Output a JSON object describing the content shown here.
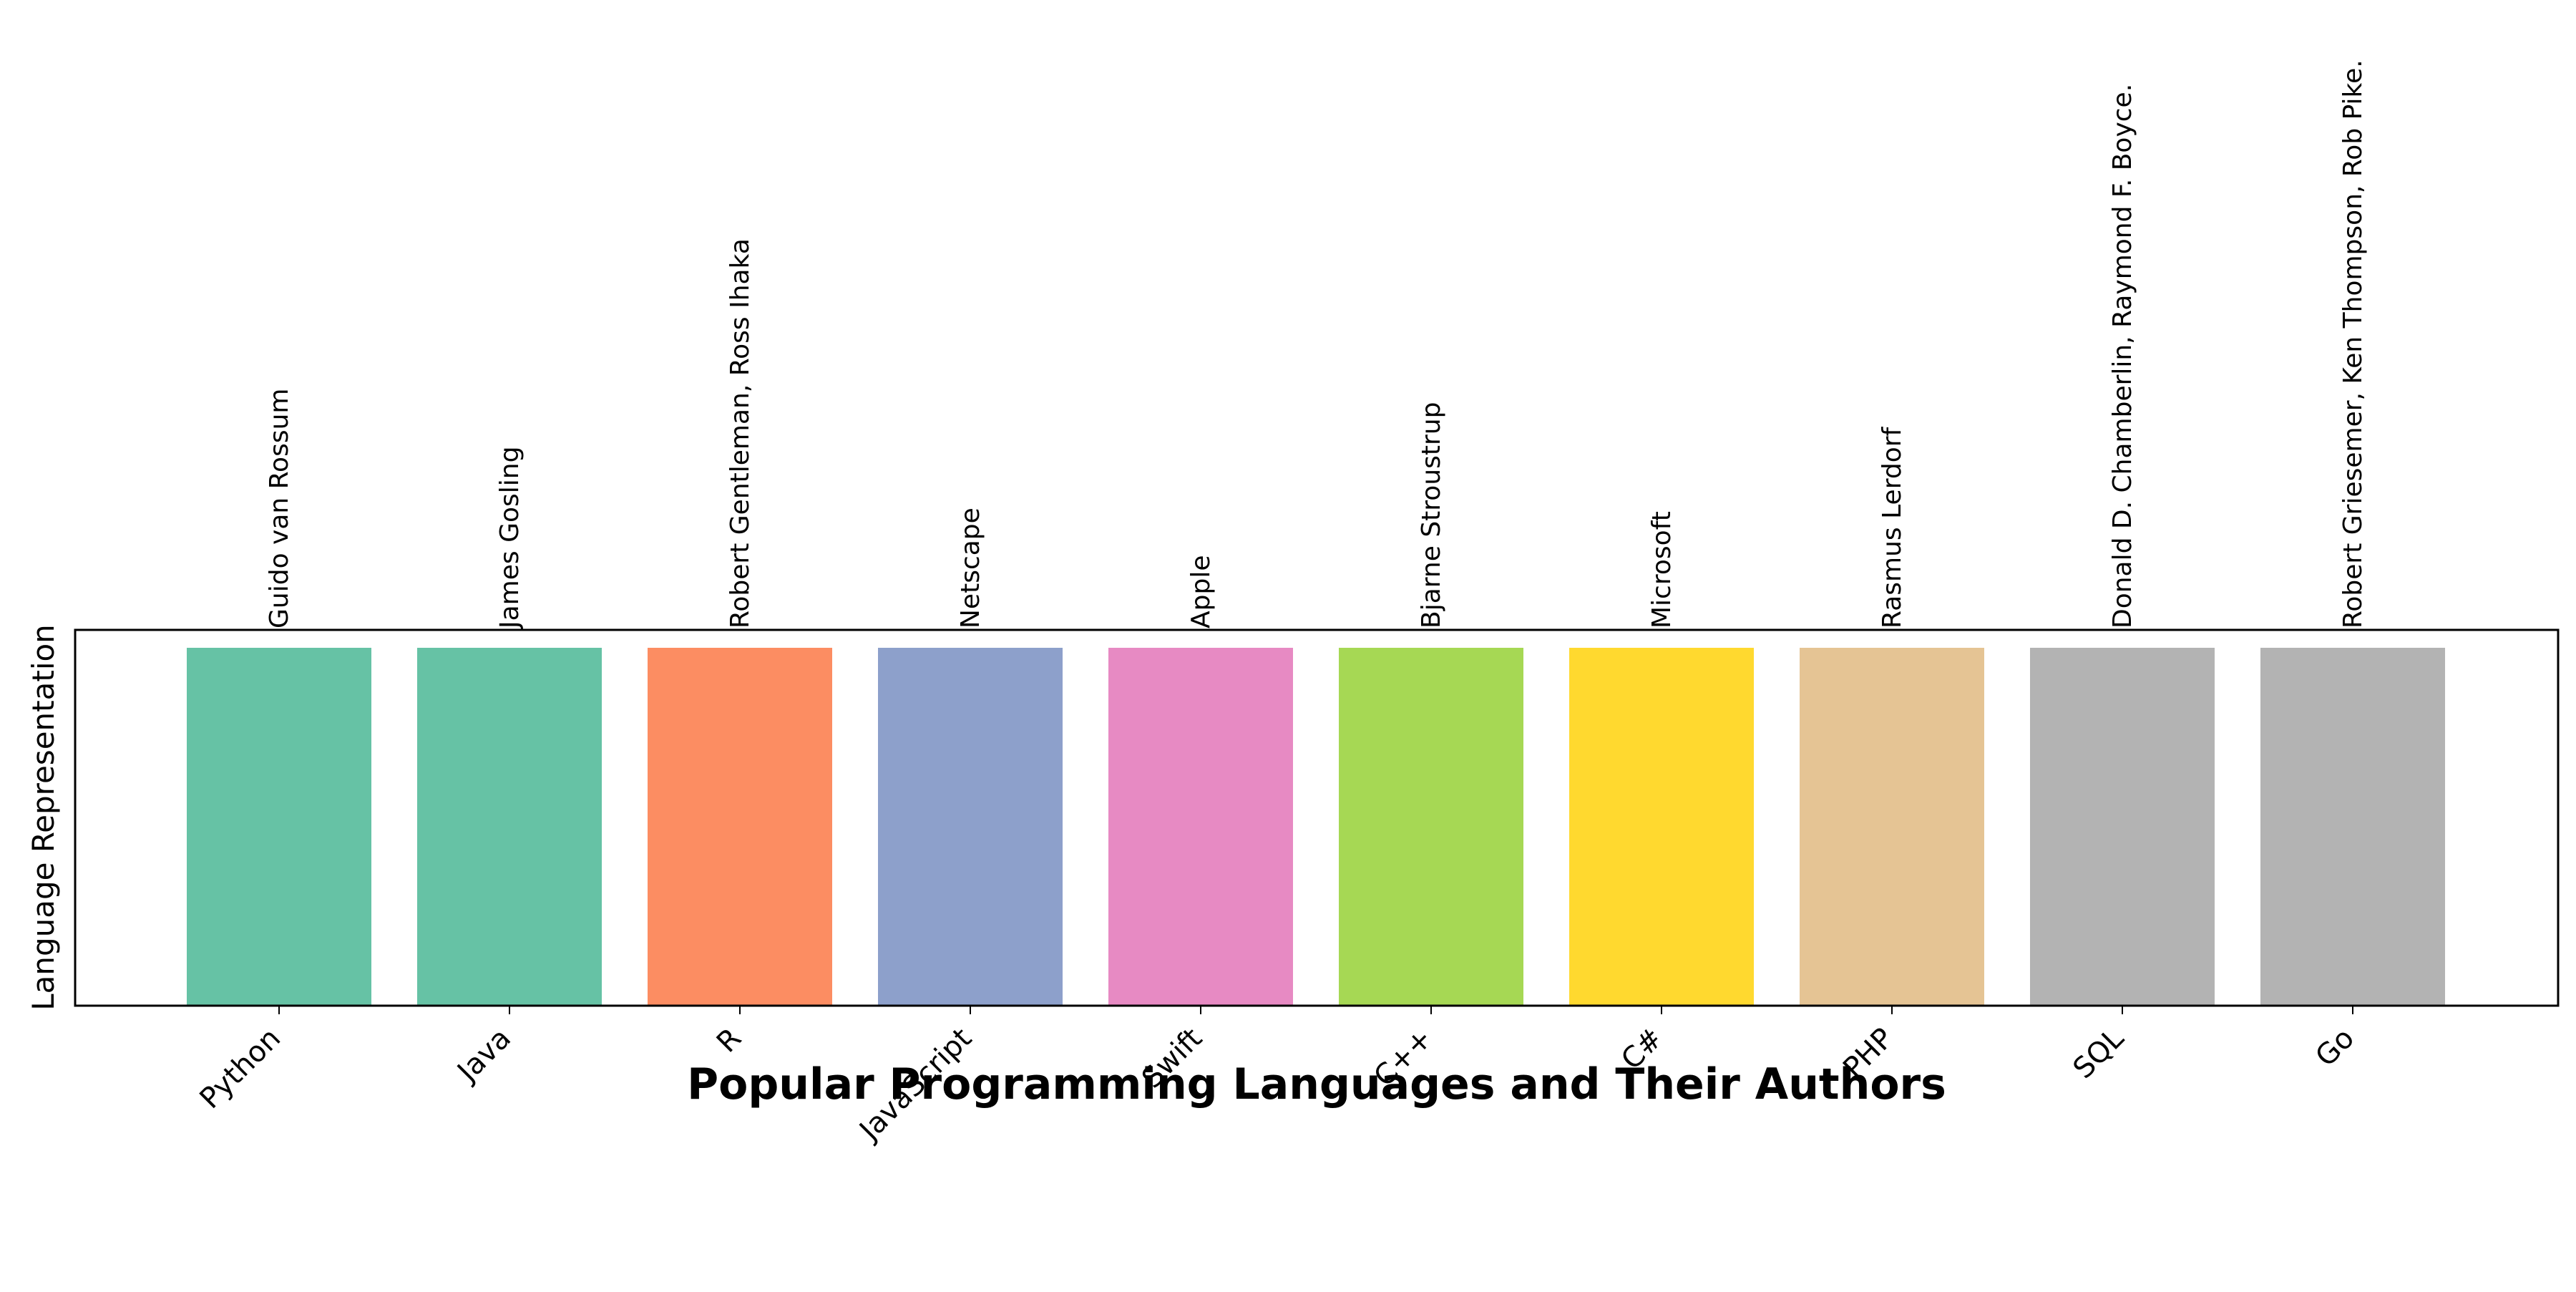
{
  "chart_data": {
    "type": "bar",
    "title": "Popular Programming Languages and Their Authors",
    "xlabel": "",
    "ylabel": "Language Representation",
    "ylim": [
      0,
      1.05
    ],
    "grid": false,
    "legend": "none",
    "categories": [
      "Python",
      "Java",
      "R",
      "JavaScript",
      "Swift",
      "C++",
      "C#",
      "PHP",
      "SQL",
      "Go"
    ],
    "values": [
      1,
      1,
      1,
      1,
      1,
      1,
      1,
      1,
      1,
      1
    ],
    "annotations": [
      "Guido van Rossum",
      "James Gosling",
      "Robert Gentleman, Ross Ihaka",
      "Netscape",
      "Apple",
      "Bjarne Stroustrup",
      "Microsoft",
      "Rasmus Lerdorf",
      "Donald D. Chamberlin, Raymond F. Boyce.",
      "Robert Griesemer, Ken Thompson, Rob Pike."
    ],
    "colors": [
      "#66c2a5",
      "#66c2a5",
      "#fc8d62",
      "#8da0cb",
      "#e78ac3",
      "#a6d854",
      "#ffd92f",
      "#e5c494",
      "#b3b3b3",
      "#b3b3b3"
    ]
  }
}
